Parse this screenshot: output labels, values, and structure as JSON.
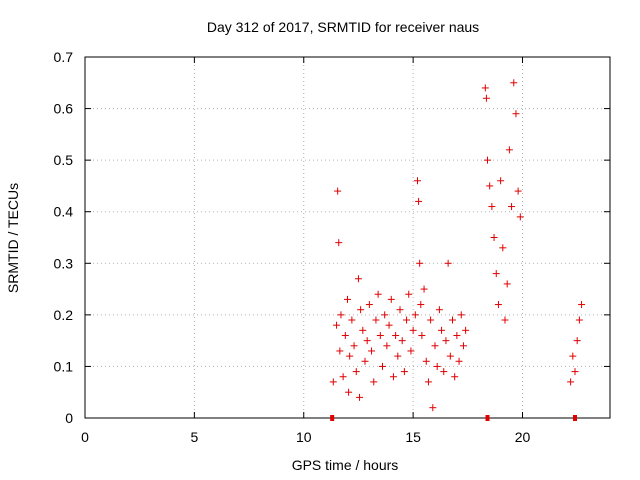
{
  "chart_data": {
    "type": "scatter",
    "title": "Day 312 of 2017, SRMTID for receiver naus",
    "xlabel": "GPS time / hours",
    "ylabel": "SRMTID / TECUs",
    "xlim": [
      0,
      24
    ],
    "ylim": [
      0,
      0.7
    ],
    "xticks": [
      "0",
      "5",
      "10",
      "15",
      "20"
    ],
    "yticks": [
      "0",
      "0.1",
      "0.2",
      "0.3",
      "0.4",
      "0.5",
      "0.6",
      "0.7"
    ],
    "grid": true,
    "legend": "none",
    "marker": "+",
    "color": "#e00000",
    "series": [
      {
        "x": [
          11.35,
          11.5,
          11.55,
          11.6,
          11.65,
          11.7,
          11.8,
          11.9,
          12.0,
          12.05,
          12.1,
          12.2,
          12.3,
          12.4,
          12.5,
          12.55,
          12.6,
          12.7,
          12.8,
          12.9,
          13.0,
          13.1,
          13.2,
          13.3,
          13.4,
          13.5,
          13.6,
          13.7,
          13.8,
          13.9,
          14.0,
          14.1,
          14.2,
          14.3,
          14.4,
          14.5,
          14.6,
          14.7,
          14.8,
          14.9,
          15.0,
          15.1,
          15.2,
          15.25,
          15.3,
          15.35,
          15.4,
          15.5,
          15.6,
          15.7,
          15.8,
          15.9,
          16.0,
          16.1,
          16.2,
          16.3,
          16.4,
          16.5,
          16.6,
          16.7,
          16.8,
          16.9,
          17.0,
          17.1,
          17.2,
          17.3,
          17.4,
          18.3,
          18.35,
          18.4,
          18.5,
          18.6,
          18.7,
          18.8,
          18.9,
          19.0,
          19.1,
          19.2,
          19.3,
          19.4,
          19.5,
          19.6,
          19.7,
          19.8,
          19.9,
          22.2,
          22.3,
          22.4,
          22.5,
          22.6,
          22.7
        ],
        "y": [
          0.07,
          0.18,
          0.44,
          0.34,
          0.13,
          0.2,
          0.08,
          0.16,
          0.23,
          0.05,
          0.12,
          0.19,
          0.14,
          0.09,
          0.27,
          0.04,
          0.21,
          0.17,
          0.11,
          0.15,
          0.22,
          0.13,
          0.07,
          0.19,
          0.24,
          0.16,
          0.1,
          0.2,
          0.14,
          0.18,
          0.23,
          0.08,
          0.16,
          0.12,
          0.21,
          0.15,
          0.09,
          0.19,
          0.24,
          0.13,
          0.17,
          0.2,
          0.46,
          0.42,
          0.3,
          0.22,
          0.16,
          0.25,
          0.11,
          0.07,
          0.19,
          0.02,
          0.14,
          0.1,
          0.21,
          0.17,
          0.09,
          0.15,
          0.3,
          0.12,
          0.19,
          0.08,
          0.16,
          0.11,
          0.2,
          0.14,
          0.17,
          0.64,
          0.62,
          0.5,
          0.45,
          0.41,
          0.35,
          0.28,
          0.22,
          0.46,
          0.33,
          0.19,
          0.26,
          0.52,
          0.41,
          0.65,
          0.59,
          0.44,
          0.39,
          0.07,
          0.12,
          0.09,
          0.15,
          0.19,
          0.22
        ]
      }
    ],
    "zero_markers_x": [
      11.3,
      18.4,
      22.4
    ]
  }
}
